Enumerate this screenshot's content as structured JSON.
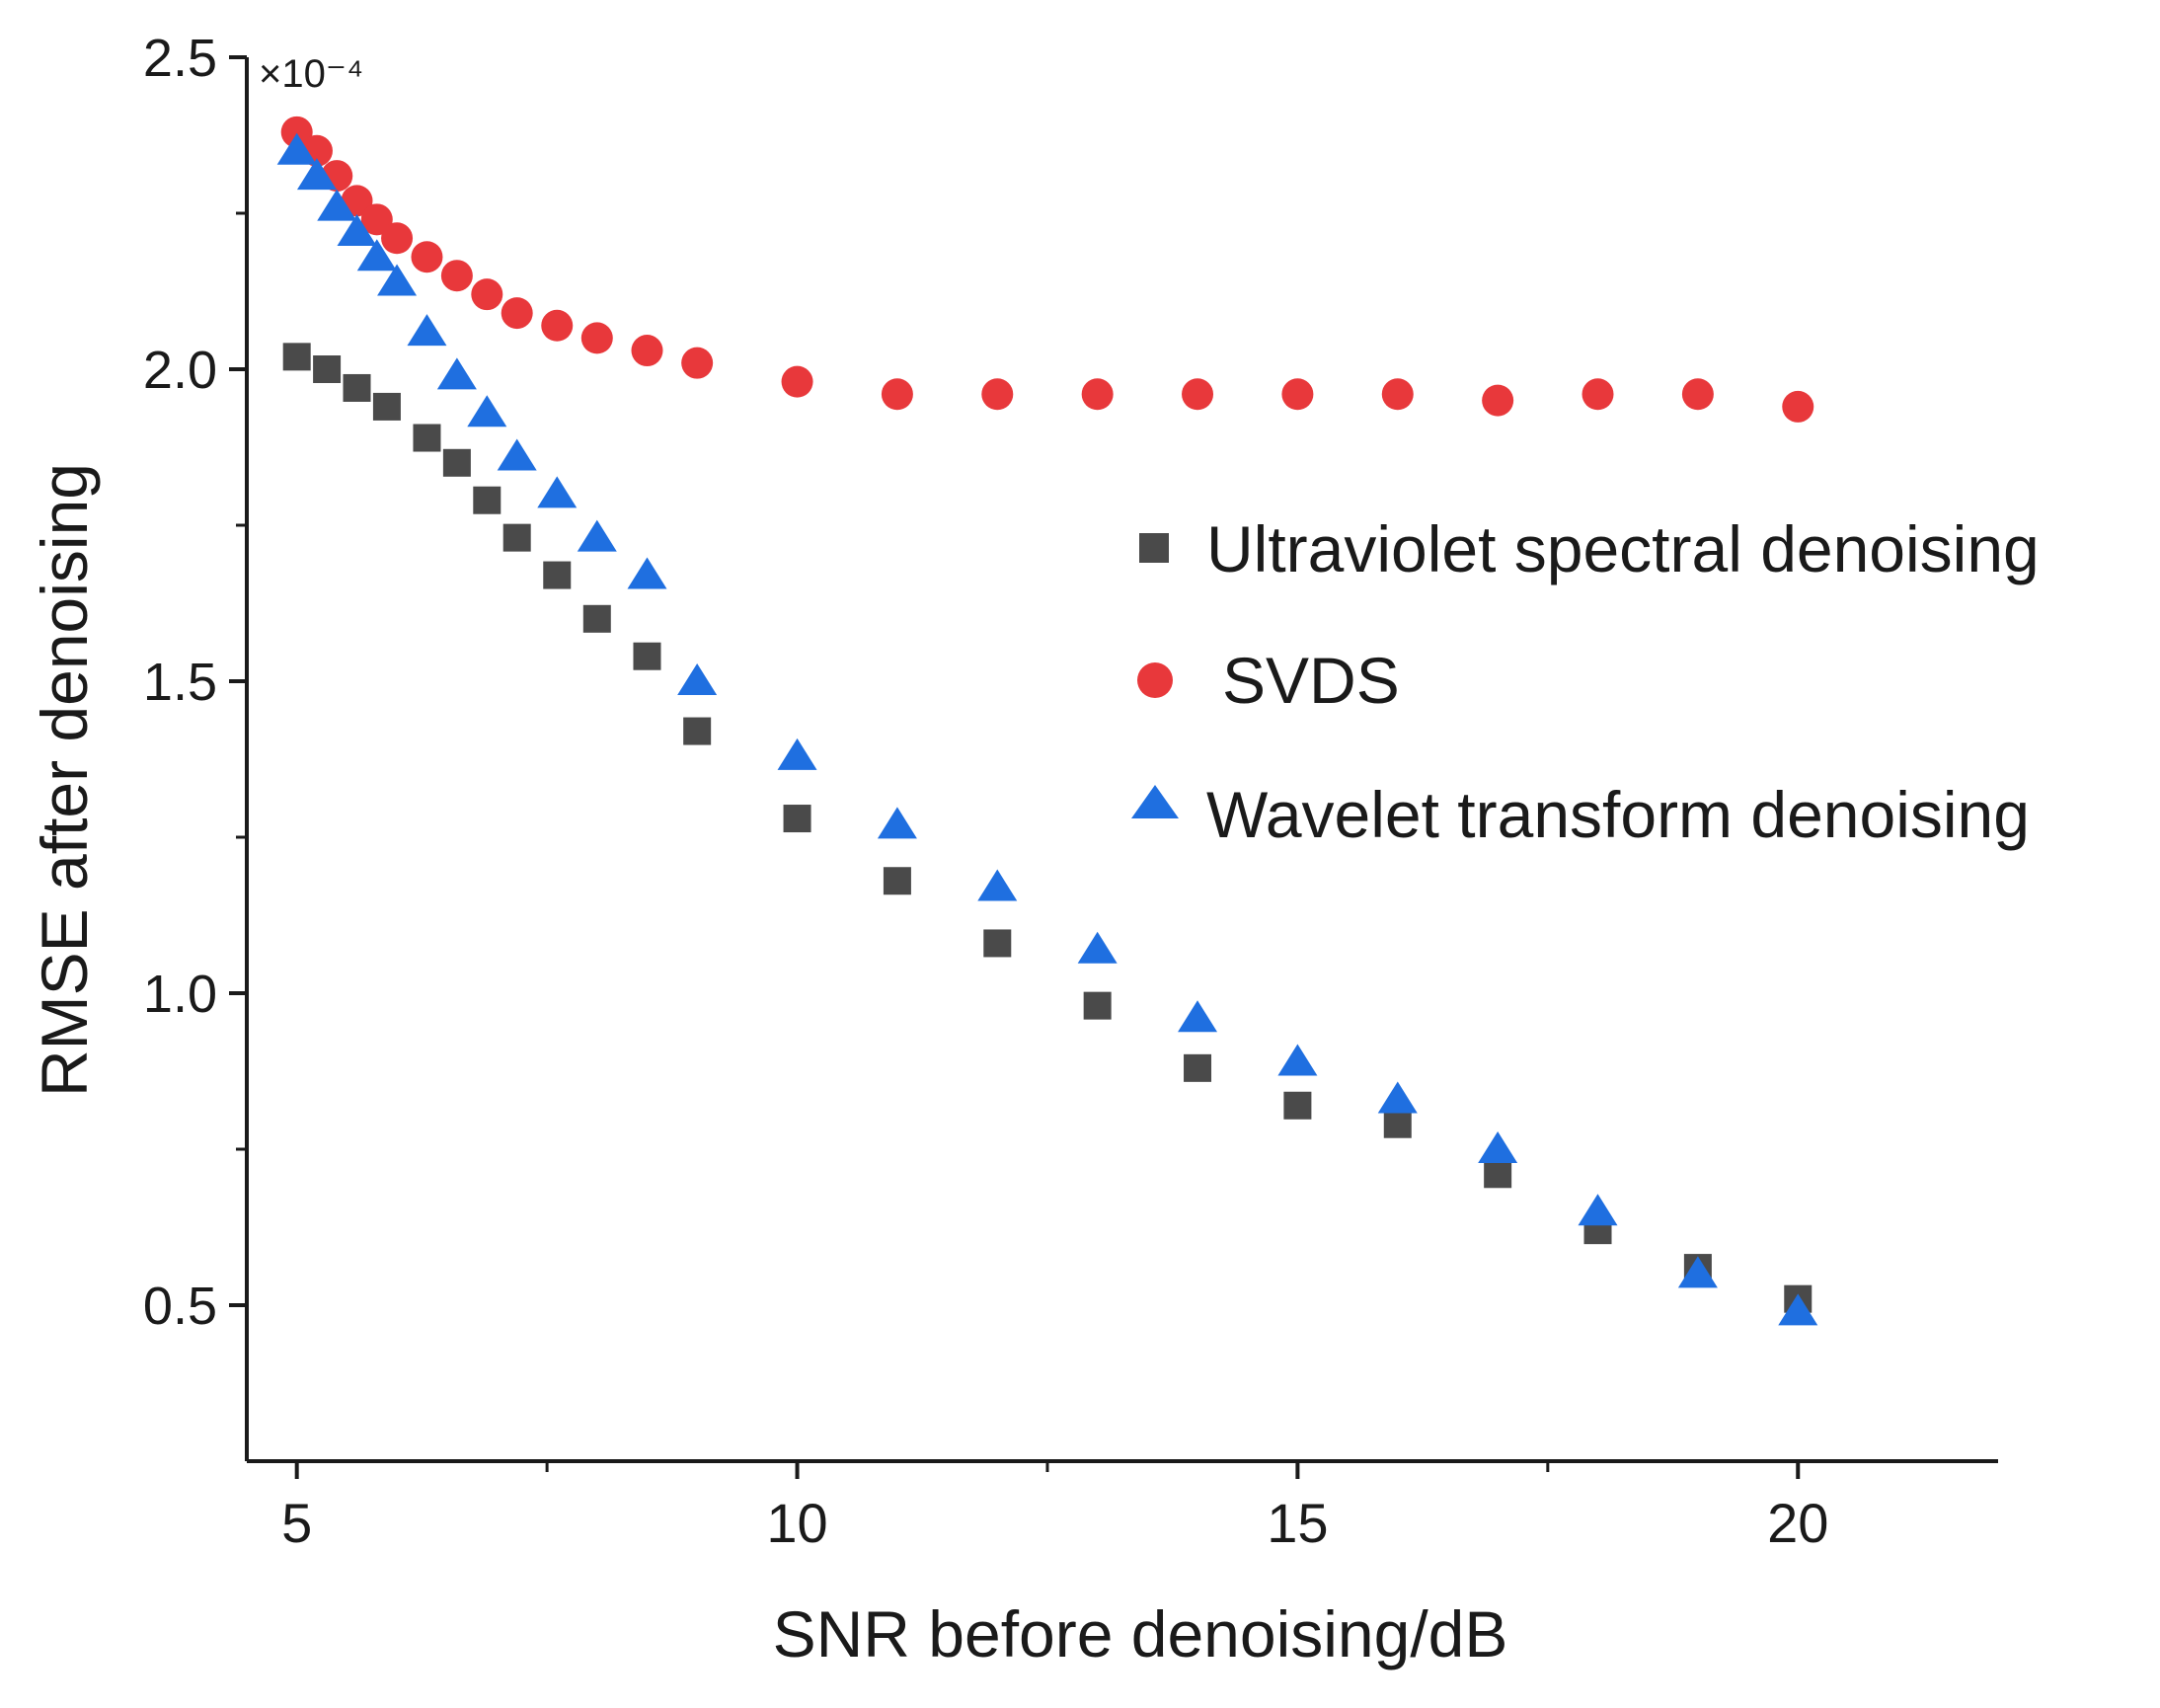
{
  "chart_data": {
    "type": "scatter",
    "xlabel": "SNR before denoising/dB",
    "ylabel": "RMSE after denoising",
    "y_multiplier": "×10⁻⁴",
    "xlim": [
      4.5,
      22
    ],
    "ylim": [
      0.25,
      2.5
    ],
    "x_ticks": [
      5,
      10,
      15,
      20
    ],
    "x_tick_labels": [
      "5",
      "10",
      "15",
      "20"
    ],
    "x_minor_ticks": [
      7.5,
      12.5,
      17.5
    ],
    "y_ticks": [
      0.5,
      1.0,
      1.5,
      2.0,
      2.5
    ],
    "y_tick_labels": [
      "0.5",
      "1.0",
      "1.5",
      "2.0",
      "2.5"
    ],
    "y_minor_ticks": [
      0.75,
      1.25,
      1.75,
      2.25
    ],
    "grid": false,
    "legend_position": "center-right",
    "series": [
      {
        "name": "Ultraviolet spectral denoising",
        "marker": "square",
        "color": "#4a4a4a",
        "points": [
          [
            5.0,
            2.02
          ],
          [
            5.3,
            2.0
          ],
          [
            5.6,
            1.97
          ],
          [
            5.9,
            1.94
          ],
          [
            6.3,
            1.89
          ],
          [
            6.6,
            1.85
          ],
          [
            6.9,
            1.79
          ],
          [
            7.2,
            1.73
          ],
          [
            7.6,
            1.67
          ],
          [
            8.0,
            1.6
          ],
          [
            8.5,
            1.54
          ],
          [
            9.0,
            1.42
          ],
          [
            10.0,
            1.28
          ],
          [
            11.0,
            1.18
          ],
          [
            12.0,
            1.08
          ],
          [
            13.0,
            0.98
          ],
          [
            14.0,
            0.88
          ],
          [
            15.0,
            0.82
          ],
          [
            16.0,
            0.79
          ],
          [
            17.0,
            0.71
          ],
          [
            18.0,
            0.62
          ],
          [
            19.0,
            0.56
          ],
          [
            20.0,
            0.51
          ]
        ]
      },
      {
        "name": "SVDS",
        "marker": "circle",
        "color": "#e8383b",
        "points": [
          [
            5.0,
            2.38
          ],
          [
            5.2,
            2.35
          ],
          [
            5.4,
            2.31
          ],
          [
            5.6,
            2.27
          ],
          [
            5.8,
            2.24
          ],
          [
            6.0,
            2.21
          ],
          [
            6.3,
            2.18
          ],
          [
            6.6,
            2.15
          ],
          [
            6.9,
            2.12
          ],
          [
            7.2,
            2.09
          ],
          [
            7.6,
            2.07
          ],
          [
            8.0,
            2.05
          ],
          [
            8.5,
            2.03
          ],
          [
            9.0,
            2.01
          ],
          [
            10.0,
            1.98
          ],
          [
            11.0,
            1.96
          ],
          [
            12.0,
            1.96
          ],
          [
            13.0,
            1.96
          ],
          [
            14.0,
            1.96
          ],
          [
            15.0,
            1.96
          ],
          [
            16.0,
            1.96
          ],
          [
            17.0,
            1.95
          ],
          [
            18.0,
            1.96
          ],
          [
            19.0,
            1.96
          ],
          [
            20.0,
            1.94
          ]
        ]
      },
      {
        "name": "Wavelet transform denoising",
        "marker": "triangle",
        "color": "#1f6fe0",
        "points": [
          [
            5.0,
            2.35
          ],
          [
            5.2,
            2.31
          ],
          [
            5.4,
            2.26
          ],
          [
            5.6,
            2.22
          ],
          [
            5.8,
            2.18
          ],
          [
            6.0,
            2.14
          ],
          [
            6.3,
            2.06
          ],
          [
            6.6,
            1.99
          ],
          [
            6.9,
            1.93
          ],
          [
            7.2,
            1.86
          ],
          [
            7.6,
            1.8
          ],
          [
            8.0,
            1.73
          ],
          [
            8.5,
            1.67
          ],
          [
            9.0,
            1.5
          ],
          [
            10.0,
            1.38
          ],
          [
            11.0,
            1.27
          ],
          [
            12.0,
            1.17
          ],
          [
            13.0,
            1.07
          ],
          [
            14.0,
            0.96
          ],
          [
            15.0,
            0.89
          ],
          [
            16.0,
            0.83
          ],
          [
            17.0,
            0.75
          ],
          [
            18.0,
            0.65
          ],
          [
            19.0,
            0.55
          ],
          [
            20.0,
            0.49
          ]
        ]
      }
    ]
  }
}
